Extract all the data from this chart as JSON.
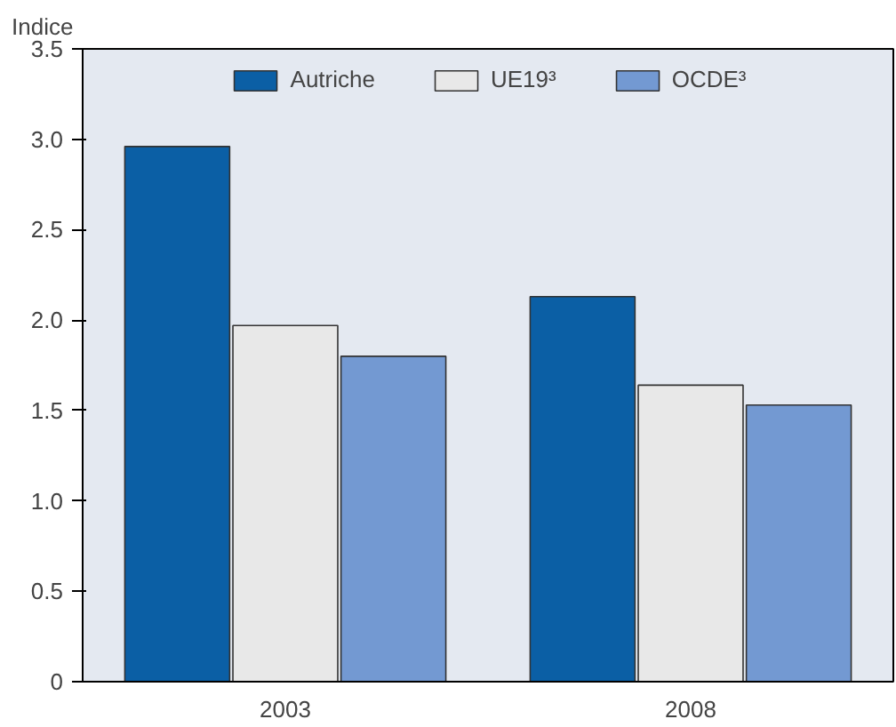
{
  "chart_data": {
    "type": "bar",
    "ylabel": "Indice",
    "categories": [
      "2003",
      "2008"
    ],
    "series": [
      {
        "name": "Autriche",
        "color": "#0b5fa5",
        "values": [
          2.96,
          2.13
        ]
      },
      {
        "name": "UE19³",
        "color": "#e8e8e8",
        "values": [
          1.97,
          1.64
        ]
      },
      {
        "name": "OCDE³",
        "color": "#7399d2",
        "values": [
          1.8,
          1.53
        ]
      }
    ],
    "ylim": [
      0,
      3.5
    ],
    "yticks": [
      0,
      {
        "value": 0.5,
        "label": "0.5"
      },
      {
        "value": 1,
        "label": "1.0"
      },
      {
        "value": 1.5,
        "label": "1.5"
      },
      {
        "value": 2,
        "label": "2.0"
      },
      {
        "value": 2.5,
        "label": "2.5"
      },
      {
        "value": 3,
        "label": "3.0"
      },
      {
        "value": 3.5,
        "label": "3.5"
      }
    ],
    "grid": false,
    "legend": "top"
  }
}
